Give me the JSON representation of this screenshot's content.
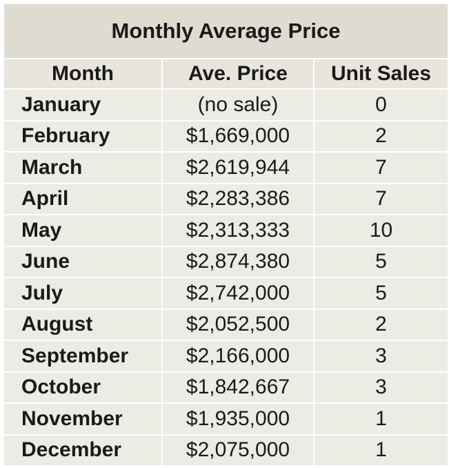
{
  "chart_data": {
    "type": "table",
    "title": "Monthly Average Price",
    "columns": [
      "Month",
      "Ave. Price",
      "Unit Sales"
    ],
    "rows": [
      {
        "month": "January",
        "price": "(no sale)",
        "sales": "0"
      },
      {
        "month": "February",
        "price": "$1,669,000",
        "sales": "2"
      },
      {
        "month": "March",
        "price": "$2,619,944",
        "sales": "7"
      },
      {
        "month": "April",
        "price": "$2,283,386",
        "sales": "7"
      },
      {
        "month": "May",
        "price": "$2,313,333",
        "sales": "10"
      },
      {
        "month": "June",
        "price": "$2,874,380",
        "sales": "5"
      },
      {
        "month": "July",
        "price": "$2,742,000",
        "sales": "5"
      },
      {
        "month": "August",
        "price": "$2,052,500",
        "sales": "2"
      },
      {
        "month": "September",
        "price": "$2,166,000",
        "sales": "3"
      },
      {
        "month": "October",
        "price": "$1,842,667",
        "sales": "3"
      },
      {
        "month": "November",
        "price": "$1,935,000",
        "sales": "1"
      },
      {
        "month": "December",
        "price": "$2,075,000",
        "sales": "1"
      }
    ]
  },
  "colors": {
    "title_bg": "#dedbd0",
    "header_bg": "#e7e5dc",
    "cell_bg": "#ecebe4",
    "border": "#ffffff"
  }
}
